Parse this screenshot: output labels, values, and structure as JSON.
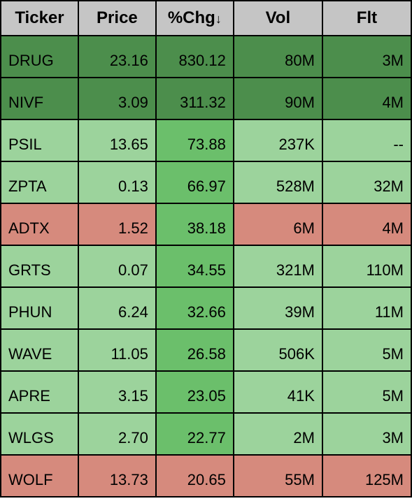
{
  "table": {
    "columns": [
      {
        "key": "ticker",
        "label": "Ticker",
        "align": "left",
        "sortable": true,
        "sorted": false
      },
      {
        "key": "price",
        "label": "Price",
        "align": "right",
        "sortable": true,
        "sorted": false
      },
      {
        "key": "chg",
        "label": "%Chg",
        "align": "right",
        "sortable": true,
        "sorted": "desc"
      },
      {
        "key": "vol",
        "label": "Vol",
        "align": "right",
        "sortable": true,
        "sorted": false
      },
      {
        "key": "flt",
        "label": "Flt",
        "align": "right",
        "sortable": true,
        "sorted": false
      }
    ],
    "sort_arrow_glyph": "↓",
    "header_bg": "#c5c5c5",
    "header_border": "#000000",
    "header_fontsize": 24,
    "cell_fontsize": 22,
    "colors": {
      "dark_green": "#4c8e4c",
      "light_green": "#9cd39c",
      "mid_green": "#6bbf6b",
      "red": "#d68a7d"
    },
    "rows": [
      {
        "ticker": "DRUG",
        "price": "23.16",
        "chg": "830.12",
        "vol": "80M",
        "flt": "3M",
        "bg": {
          "ticker": "dark_green",
          "price": "dark_green",
          "chg": "dark_green",
          "vol": "dark_green",
          "flt": "dark_green"
        }
      },
      {
        "ticker": "NIVF",
        "price": "3.09",
        "chg": "311.32",
        "vol": "90M",
        "flt": "4M",
        "bg": {
          "ticker": "dark_green",
          "price": "dark_green",
          "chg": "dark_green",
          "vol": "dark_green",
          "flt": "dark_green"
        }
      },
      {
        "ticker": "PSIL",
        "price": "13.65",
        "chg": "73.88",
        "vol": "237K",
        "flt": "--",
        "bg": {
          "ticker": "light_green",
          "price": "light_green",
          "chg": "mid_green",
          "vol": "light_green",
          "flt": "light_green"
        }
      },
      {
        "ticker": "ZPTA",
        "price": "0.13",
        "chg": "66.97",
        "vol": "528M",
        "flt": "32M",
        "bg": {
          "ticker": "light_green",
          "price": "light_green",
          "chg": "mid_green",
          "vol": "light_green",
          "flt": "light_green"
        }
      },
      {
        "ticker": "ADTX",
        "price": "1.52",
        "chg": "38.18",
        "vol": "6M",
        "flt": "4M",
        "bg": {
          "ticker": "red",
          "price": "red",
          "chg": "mid_green",
          "vol": "red",
          "flt": "red"
        }
      },
      {
        "ticker": "GRTS",
        "price": "0.07",
        "chg": "34.55",
        "vol": "321M",
        "flt": "110M",
        "bg": {
          "ticker": "light_green",
          "price": "light_green",
          "chg": "mid_green",
          "vol": "light_green",
          "flt": "light_green"
        }
      },
      {
        "ticker": "PHUN",
        "price": "6.24",
        "chg": "32.66",
        "vol": "39M",
        "flt": "11M",
        "bg": {
          "ticker": "light_green",
          "price": "light_green",
          "chg": "mid_green",
          "vol": "light_green",
          "flt": "light_green"
        }
      },
      {
        "ticker": "WAVE",
        "price": "11.05",
        "chg": "26.58",
        "vol": "506K",
        "flt": "5M",
        "bg": {
          "ticker": "light_green",
          "price": "light_green",
          "chg": "mid_green",
          "vol": "light_green",
          "flt": "light_green"
        }
      },
      {
        "ticker": "APRE",
        "price": "3.15",
        "chg": "23.05",
        "vol": "41K",
        "flt": "5M",
        "bg": {
          "ticker": "light_green",
          "price": "light_green",
          "chg": "mid_green",
          "vol": "light_green",
          "flt": "light_green"
        }
      },
      {
        "ticker": "WLGS",
        "price": "2.70",
        "chg": "22.77",
        "vol": "2M",
        "flt": "3M",
        "bg": {
          "ticker": "light_green",
          "price": "light_green",
          "chg": "mid_green",
          "vol": "light_green",
          "flt": "light_green"
        }
      },
      {
        "ticker": "WOLF",
        "price": "13.73",
        "chg": "20.65",
        "vol": "55M",
        "flt": "125M",
        "bg": {
          "ticker": "red",
          "price": "red",
          "chg": "red",
          "vol": "red",
          "flt": "red"
        }
      }
    ]
  }
}
